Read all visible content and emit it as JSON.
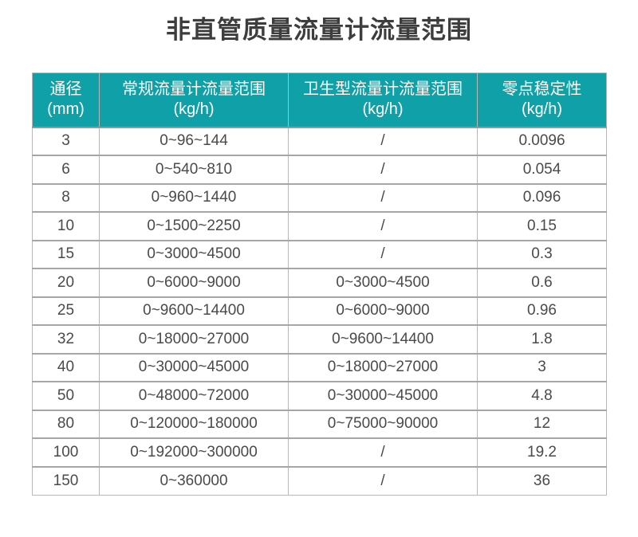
{
  "page_title": "非直管质量流量计流量范围",
  "colors": {
    "header_bg": "#0fa1a7",
    "header_text": "#ffffff",
    "title_text": "#3d3d3d",
    "data_text": "#4a4a4a",
    "row_separator": "#a6a6a6"
  },
  "chart_data": {
    "type": "table",
    "title": "非直管质量流量计流量范围",
    "headers": [
      {
        "label": "通径",
        "unit": "(mm)"
      },
      {
        "label": "常规流量计流量范围",
        "unit": "(kg/h)"
      },
      {
        "label": "卫生型流量计流量范围",
        "unit": "(kg/h)"
      },
      {
        "label": "零点稳定性",
        "unit": "(kg/h)"
      }
    ],
    "rows": [
      [
        "3",
        "0~96~144",
        "/",
        "0.0096"
      ],
      [
        "6",
        "0~540~810",
        "/",
        "0.054"
      ],
      [
        "8",
        "0~960~1440",
        "/",
        "0.096"
      ],
      [
        "10",
        "0~1500~2250",
        "/",
        "0.15"
      ],
      [
        "15",
        "0~3000~4500",
        "/",
        "0.3"
      ],
      [
        "20",
        "0~6000~9000",
        "0~3000~4500",
        "0.6"
      ],
      [
        "25",
        "0~9600~14400",
        "0~6000~9000",
        "0.96"
      ],
      [
        "32",
        "0~18000~27000",
        "0~9600~14400",
        "1.8"
      ],
      [
        "40",
        "0~30000~45000",
        "0~18000~27000",
        "3"
      ],
      [
        "50",
        "0~48000~72000",
        "0~30000~45000",
        "4.8"
      ],
      [
        "80",
        "0~120000~180000",
        "0~75000~90000",
        "12"
      ],
      [
        "100",
        "0~192000~300000",
        "/",
        "19.2"
      ],
      [
        "150",
        "0~360000",
        "/",
        "36"
      ]
    ]
  }
}
